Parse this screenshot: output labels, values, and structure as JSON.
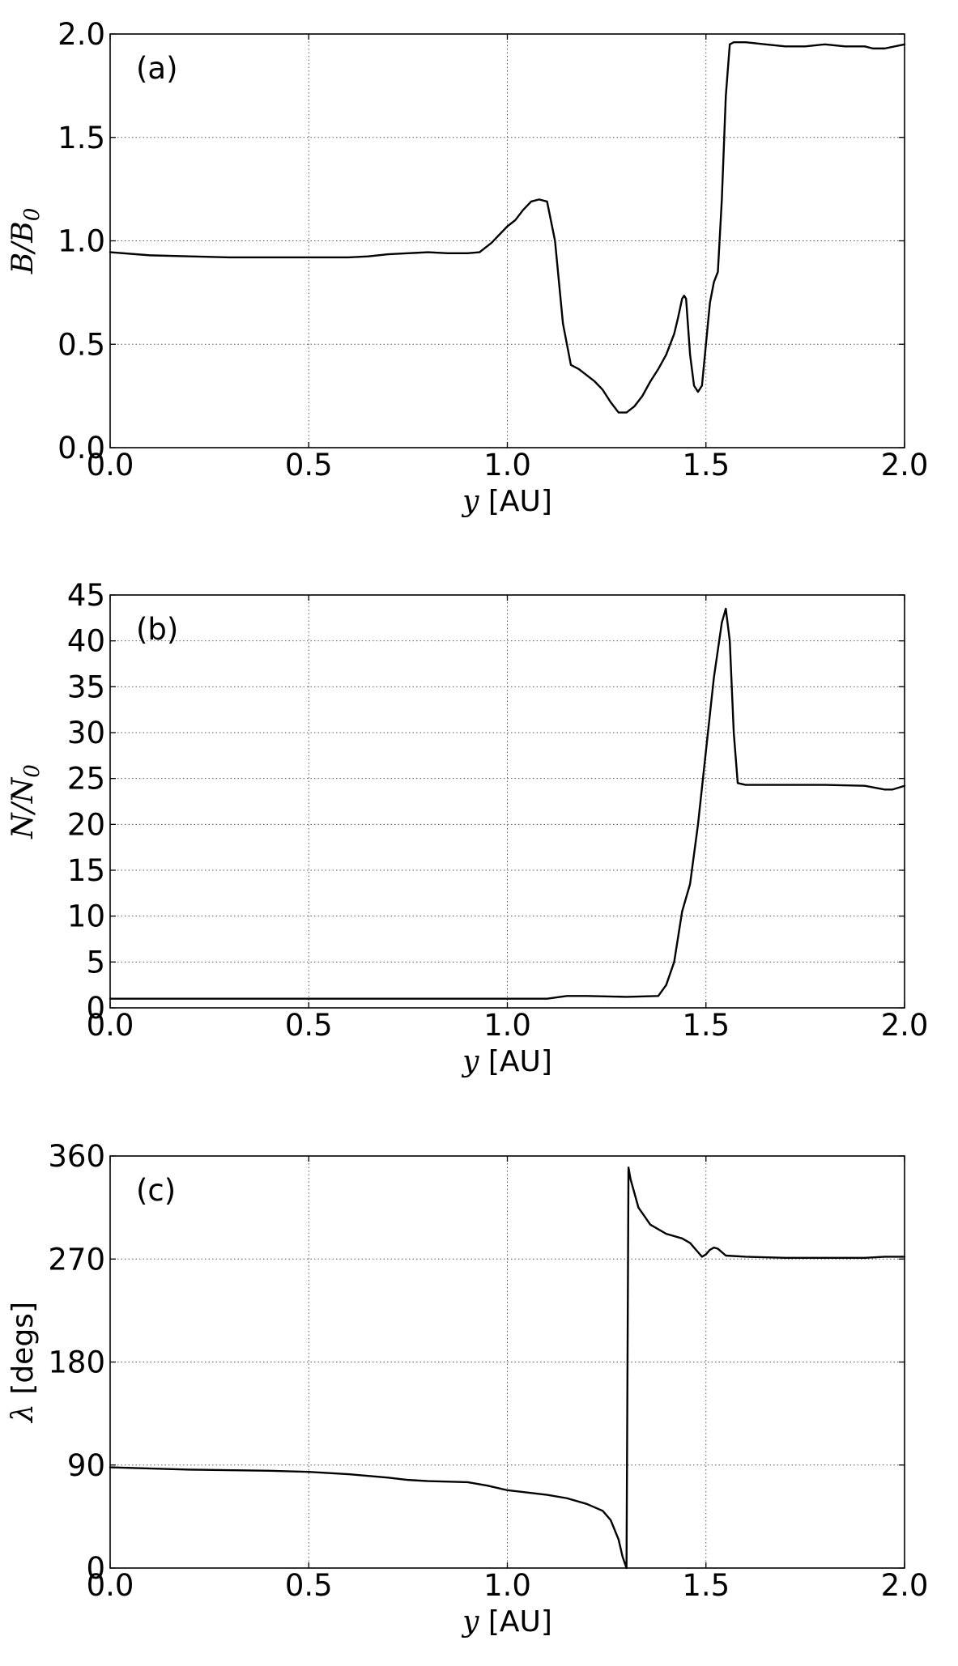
{
  "chart_data": [
    {
      "type": "line",
      "panel_label": "(a)",
      "xlabel": {
        "math": "y",
        "text": " [AU]"
      },
      "ylabel": {
        "math": "B/B",
        "sub": "0",
        "text": ""
      },
      "xlim": [
        0.0,
        2.0
      ],
      "ylim": [
        0.0,
        2.0
      ],
      "xticks": [
        "0.0",
        "0.5",
        "1.0",
        "1.5",
        "2.0"
      ],
      "xtick_values": [
        0.0,
        0.5,
        1.0,
        1.5,
        2.0
      ],
      "yticks": [
        "0.0",
        "0.5",
        "1.0",
        "1.5",
        "2.0"
      ],
      "ytick_values": [
        0.0,
        0.5,
        1.0,
        1.5,
        2.0
      ],
      "grid": true,
      "series": [
        {
          "x": [
            0.0,
            0.1,
            0.2,
            0.3,
            0.4,
            0.5,
            0.6,
            0.65,
            0.7,
            0.75,
            0.8,
            0.85,
            0.9,
            0.93,
            0.96,
            0.98,
            1.0,
            1.02,
            1.04,
            1.06,
            1.08,
            1.1,
            1.12,
            1.14,
            1.16,
            1.18,
            1.2,
            1.22,
            1.24,
            1.26,
            1.28,
            1.3,
            1.32,
            1.34,
            1.36,
            1.38,
            1.4,
            1.42,
            1.43,
            1.44,
            1.445,
            1.45,
            1.46,
            1.47,
            1.48,
            1.49,
            1.5,
            1.51,
            1.52,
            1.53,
            1.54,
            1.55,
            1.56,
            1.57,
            1.58,
            1.6,
            1.65,
            1.7,
            1.75,
            1.8,
            1.85,
            1.9,
            1.92,
            1.95,
            2.0
          ],
          "y": [
            0.945,
            0.93,
            0.925,
            0.92,
            0.92,
            0.92,
            0.92,
            0.925,
            0.935,
            0.94,
            0.945,
            0.94,
            0.94,
            0.945,
            0.99,
            1.03,
            1.07,
            1.1,
            1.15,
            1.19,
            1.2,
            1.19,
            1.0,
            0.6,
            0.4,
            0.38,
            0.35,
            0.32,
            0.28,
            0.22,
            0.17,
            0.17,
            0.2,
            0.25,
            0.32,
            0.38,
            0.45,
            0.55,
            0.63,
            0.72,
            0.735,
            0.72,
            0.45,
            0.3,
            0.27,
            0.3,
            0.5,
            0.7,
            0.8,
            0.85,
            1.2,
            1.7,
            1.95,
            1.96,
            1.96,
            1.96,
            1.95,
            1.94,
            1.94,
            1.95,
            1.94,
            1.94,
            1.93,
            1.93,
            1.95
          ]
        }
      ]
    },
    {
      "type": "line",
      "panel_label": "(b)",
      "xlabel": {
        "math": "y",
        "text": " [AU]"
      },
      "ylabel": {
        "math": "N/N",
        "sub": "0",
        "text": ""
      },
      "xlim": [
        0.0,
        2.0
      ],
      "ylim": [
        0,
        45
      ],
      "xticks": [
        "0.0",
        "0.5",
        "1.0",
        "1.5",
        "2.0"
      ],
      "xtick_values": [
        0.0,
        0.5,
        1.0,
        1.5,
        2.0
      ],
      "yticks": [
        "0",
        "5",
        "10",
        "15",
        "20",
        "25",
        "30",
        "35",
        "40",
        "45"
      ],
      "ytick_values": [
        0,
        5,
        10,
        15,
        20,
        25,
        30,
        35,
        40,
        45
      ],
      "grid": true,
      "series": [
        {
          "x": [
            0.0,
            0.2,
            0.4,
            0.6,
            0.8,
            1.0,
            1.1,
            1.15,
            1.2,
            1.3,
            1.38,
            1.4,
            1.42,
            1.44,
            1.46,
            1.48,
            1.5,
            1.52,
            1.54,
            1.55,
            1.56,
            1.57,
            1.58,
            1.6,
            1.7,
            1.8,
            1.9,
            1.95,
            1.97,
            2.0
          ],
          "y": [
            1.0,
            1.0,
            1.0,
            1.0,
            1.0,
            1.0,
            1.0,
            1.3,
            1.3,
            1.2,
            1.3,
            2.5,
            5.0,
            10.5,
            13.5,
            20.0,
            28.0,
            36.0,
            42.0,
            43.5,
            40.0,
            30.0,
            24.5,
            24.3,
            24.3,
            24.3,
            24.2,
            23.8,
            23.8,
            24.2
          ]
        }
      ]
    },
    {
      "type": "line",
      "panel_label": "(c)",
      "xlabel": {
        "math": "y",
        "text": " [AU]"
      },
      "ylabel": {
        "math": "λ",
        "sub": "",
        "text": " [degs]"
      },
      "xlim": [
        0.0,
        2.0
      ],
      "ylim": [
        0,
        360
      ],
      "xticks": [
        "0.0",
        "0.5",
        "1.0",
        "1.5",
        "2.0"
      ],
      "xtick_values": [
        0.0,
        0.5,
        1.0,
        1.5,
        2.0
      ],
      "yticks": [
        "0",
        "90",
        "180",
        "270",
        "360"
      ],
      "ytick_values": [
        0,
        90,
        180,
        270,
        360
      ],
      "grid": true,
      "series": [
        {
          "x": [
            0.0,
            0.2,
            0.4,
            0.5,
            0.6,
            0.7,
            0.75,
            0.8,
            0.9,
            0.95,
            1.0,
            1.05,
            1.1,
            1.15,
            1.2,
            1.24,
            1.26,
            1.28,
            1.29,
            1.3,
            1.3,
            1.305,
            1.31,
            1.33,
            1.36,
            1.4,
            1.44,
            1.46,
            1.48,
            1.49,
            1.5,
            1.51,
            1.52,
            1.53,
            1.54,
            1.55,
            1.6,
            1.7,
            1.8,
            1.9,
            1.95,
            2.0
          ],
          "y": [
            88,
            86,
            85,
            84,
            82,
            79,
            77,
            76,
            75,
            72,
            68,
            66,
            64,
            61,
            56,
            50,
            42,
            25,
            10,
            0,
            0,
            350,
            340,
            315,
            300,
            292,
            288,
            284,
            276,
            272,
            274,
            278,
            280,
            279,
            276,
            273,
            272,
            271,
            271,
            271,
            272,
            272
          ]
        }
      ]
    }
  ]
}
